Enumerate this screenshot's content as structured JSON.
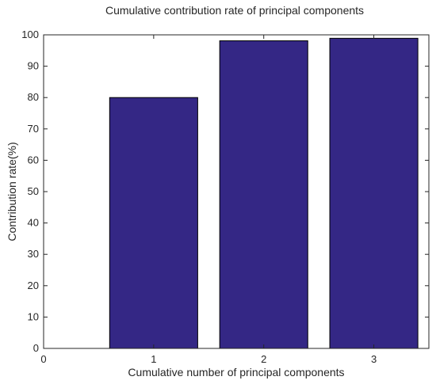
{
  "chart_data": {
    "type": "bar",
    "title": "Cumulative contribution rate of principal components",
    "xlabel": "Cumulative number of principal components",
    "ylabel": "Contribution rate(%)",
    "categories": [
      "1",
      "2",
      "3"
    ],
    "x": [
      1,
      2,
      3
    ],
    "values": [
      80,
      98.1,
      98.9
    ],
    "xlim": [
      0,
      3.5
    ],
    "ylim": [
      0,
      100
    ],
    "xticks": [
      0,
      1,
      2,
      3
    ],
    "yticks": [
      0,
      10,
      20,
      30,
      40,
      50,
      60,
      70,
      80,
      90,
      100
    ],
    "grid": false,
    "legend": "none",
    "colors": {
      "bar_fill": "#342785",
      "bar_edge": "#000000",
      "axis": "#262626"
    }
  }
}
